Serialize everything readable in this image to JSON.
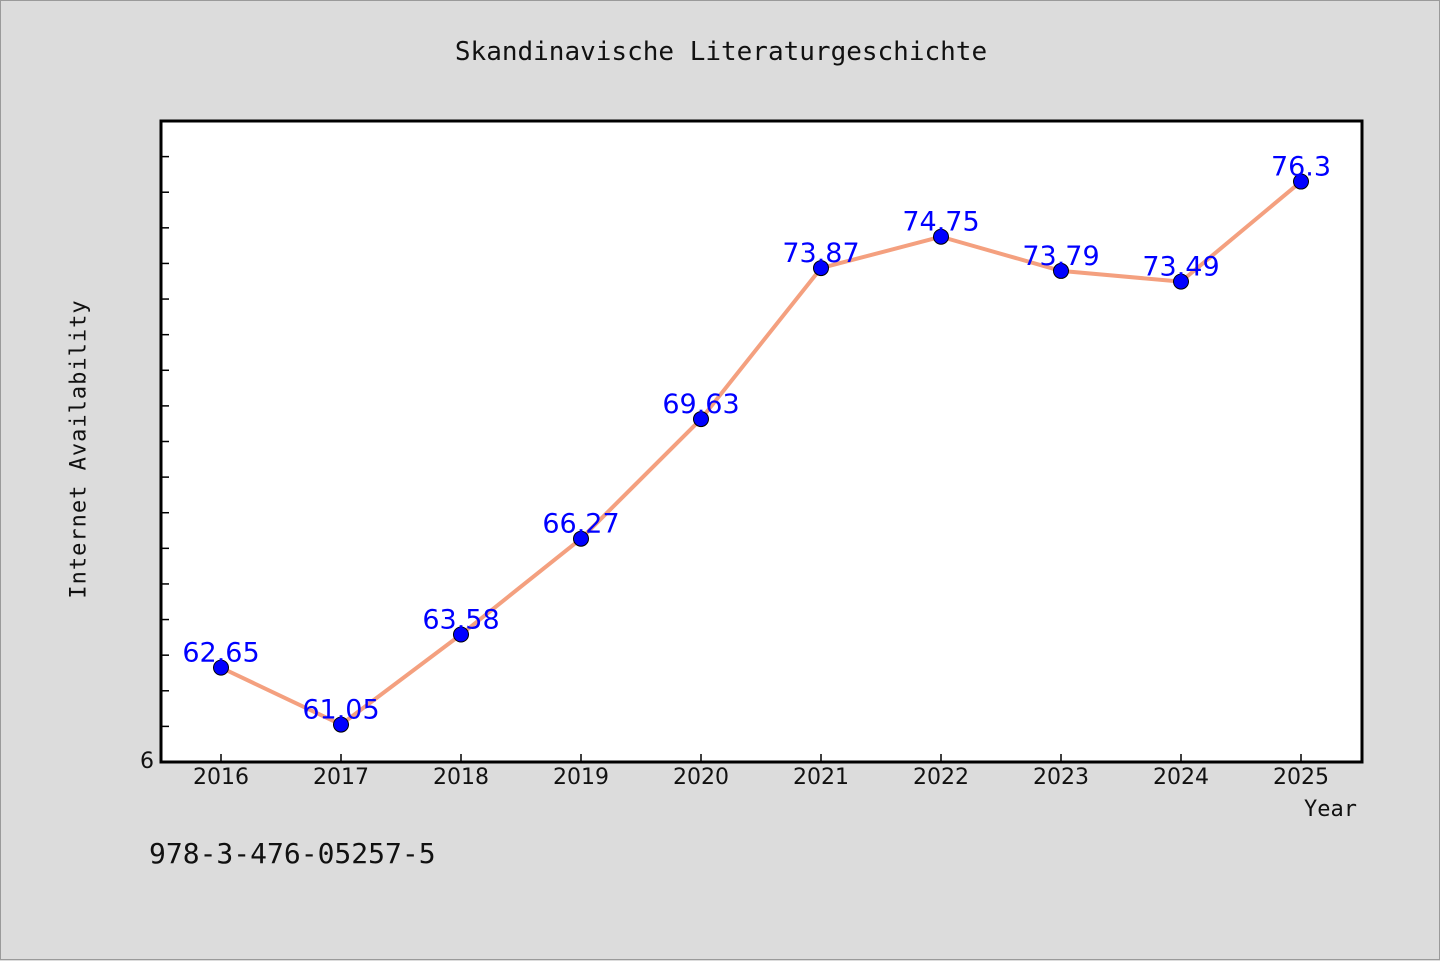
{
  "chart_data": {
    "type": "line",
    "title": "Skandinavische Literaturgeschichte",
    "xlabel": "Year",
    "ylabel": "Internet Availability",
    "categories": [
      "2016",
      "2017",
      "2018",
      "2019",
      "2020",
      "2021",
      "2022",
      "2023",
      "2024",
      "2025"
    ],
    "series": [
      {
        "values": [
          62.65,
          61.05,
          63.58,
          66.27,
          69.63,
          73.87,
          74.75,
          73.79,
          73.49,
          76.3
        ],
        "labels": [
          "62.65",
          "61.05",
          "63.58",
          "66.27",
          "69.63",
          "73.87",
          "74.75",
          "73.79",
          "73.49",
          "76.3"
        ]
      }
    ],
    "y_tick_labels": [
      "6"
    ],
    "ylim": [
      60.0,
      78.0
    ],
    "grid": false,
    "line_color": "#f4a07f",
    "marker_color": "#0000ff",
    "label_color": "#0000ff"
  },
  "footer": {
    "isbn": "978-3-476-05257-5"
  }
}
